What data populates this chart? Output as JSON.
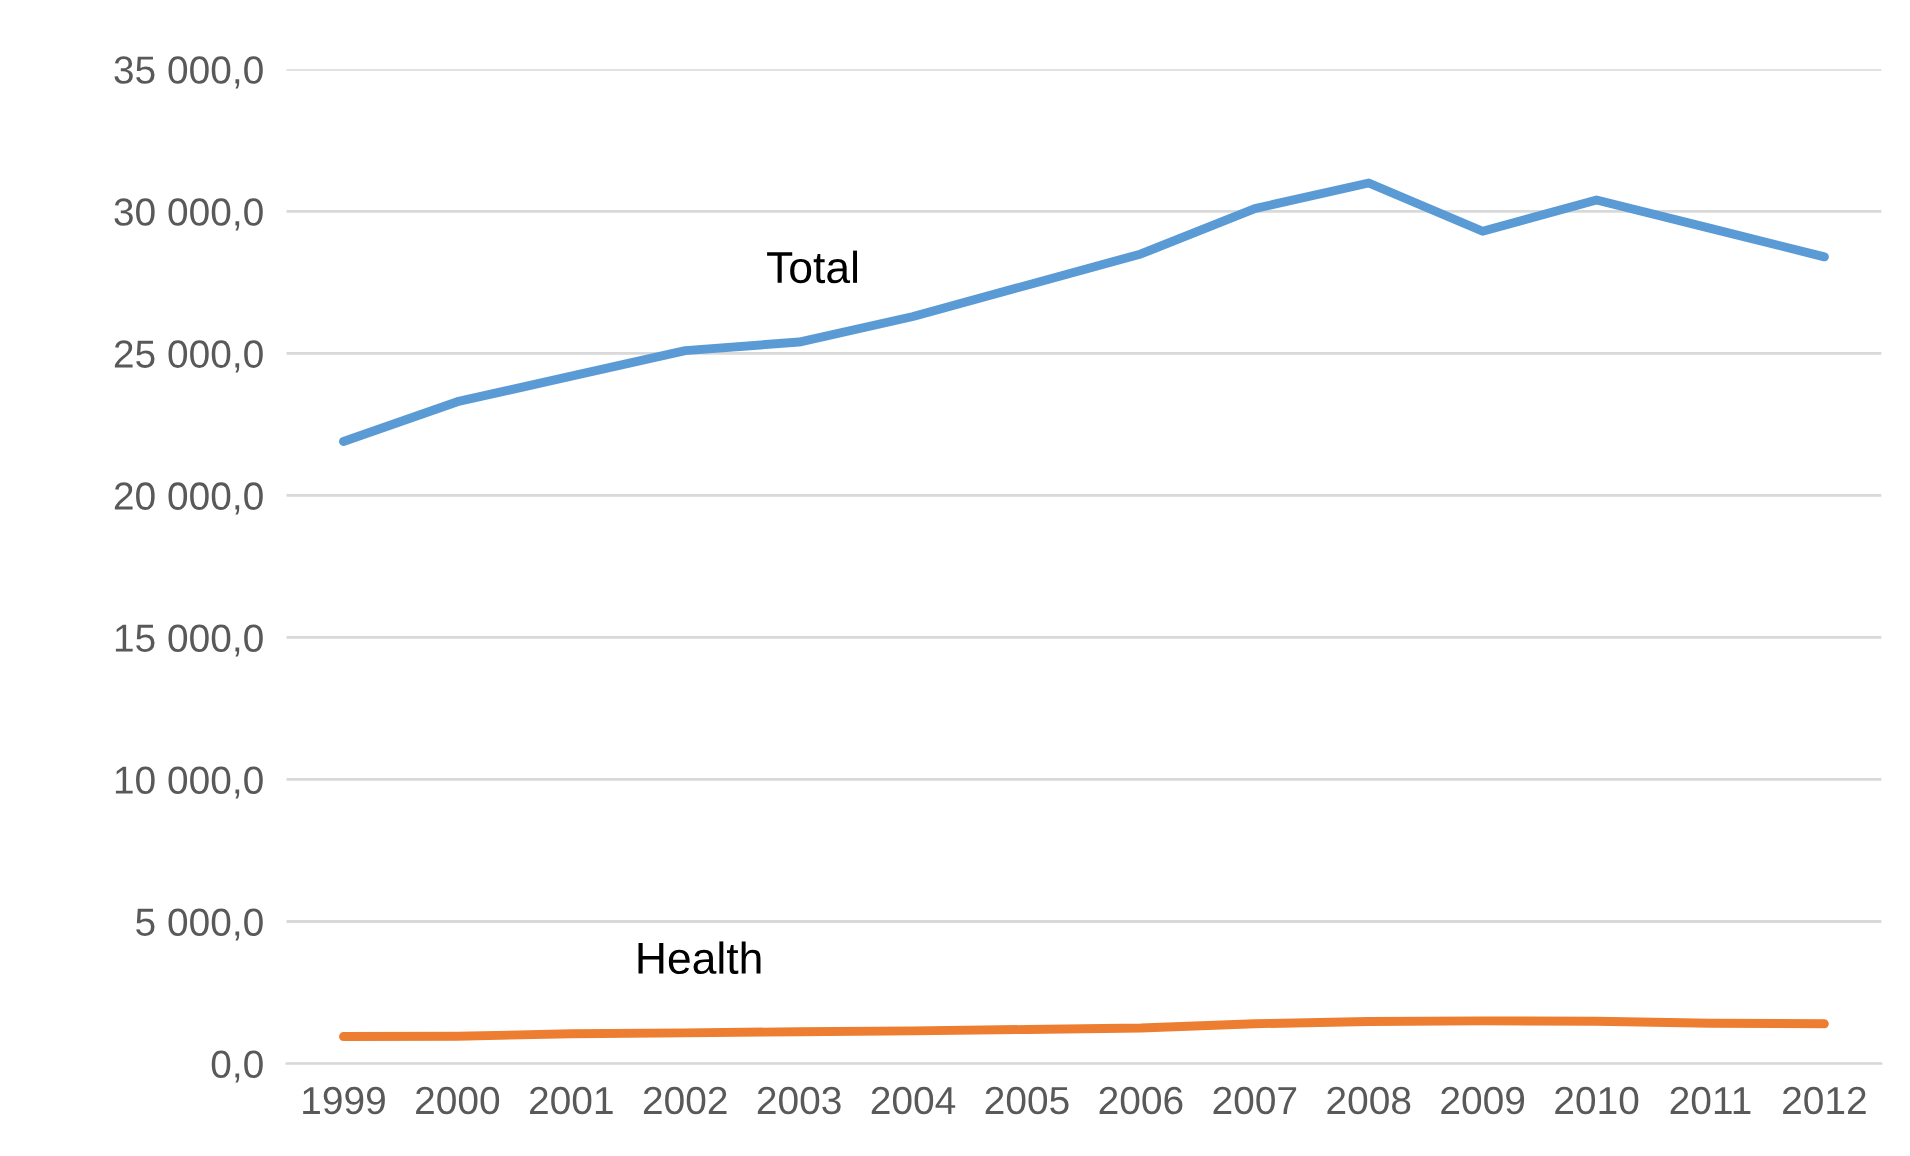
{
  "chart_data": {
    "type": "line",
    "categories": [
      "1999",
      "2000",
      "2001",
      "2002",
      "2003",
      "2004",
      "2005",
      "2006",
      "2007",
      "2008",
      "2009",
      "2010",
      "2011",
      "2012"
    ],
    "series": [
      {
        "name": "Total",
        "color": "#5b9bd5",
        "values": [
          21900,
          23300,
          24200,
          25100,
          25400,
          26300,
          27400,
          28500,
          30100,
          31000,
          29300,
          30400,
          29400,
          28400
        ]
      },
      {
        "name": "Health",
        "color": "#ed7d31",
        "values": [
          950,
          960,
          1050,
          1080,
          1120,
          1150,
          1200,
          1250,
          1400,
          1480,
          1500,
          1490,
          1420,
          1400
        ]
      }
    ],
    "ylim": [
      0,
      35000
    ],
    "yticks": [
      {
        "value": 0,
        "label": "0,0"
      },
      {
        "value": 5000,
        "label": "5 000,0"
      },
      {
        "value": 10000,
        "label": "10 000,0"
      },
      {
        "value": 15000,
        "label": "15 000,0"
      },
      {
        "value": 20000,
        "label": "20 000,0"
      },
      {
        "value": 25000,
        "label": "25 000,0"
      },
      {
        "value": 30000,
        "label": "30 000,0"
      },
      {
        "value": 35000,
        "label": "35 000,0"
      }
    ],
    "grid": "y",
    "legend": false,
    "marker": "none",
    "line_style": "solid"
  }
}
